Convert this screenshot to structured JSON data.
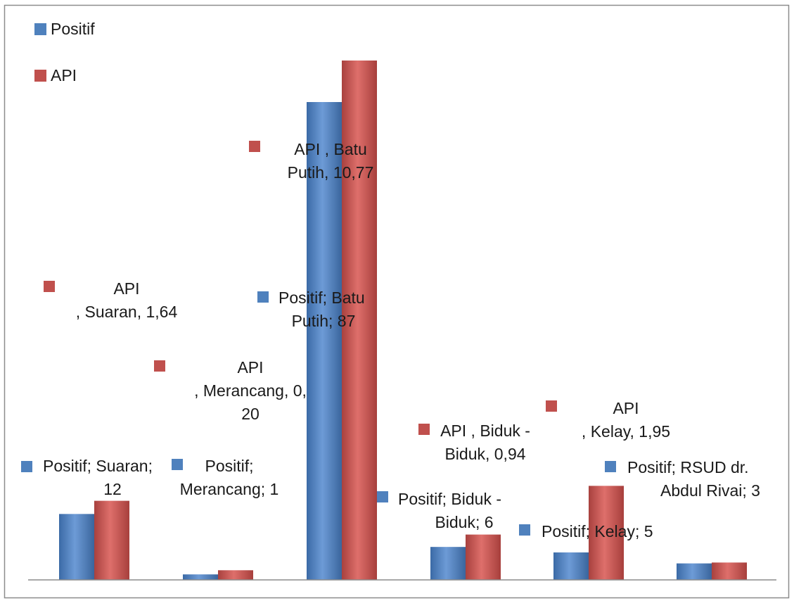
{
  "chart_data": {
    "type": "bar",
    "categories": [
      "Suaran",
      "Merancang",
      "Batu Putih",
      "Biduk - Biduk",
      "Kelay",
      "RSUD dr. Abdul Rivai"
    ],
    "series": [
      {
        "name": "Positif",
        "color": "#4f81bd",
        "values": [
          12,
          1,
          87,
          6,
          5,
          3
        ]
      },
      {
        "name": "API",
        "color": "#c0504d",
        "values": [
          1.64,
          0.2,
          10.77,
          0.94,
          1.95,
          0.36
        ]
      }
    ],
    "data_labels": {
      "Positif": [
        [
          "Positif; Suaran;",
          "12"
        ],
        [
          "Positif;",
          "Merancang; 1"
        ],
        [
          "Positif; Batu",
          "Putih; 87"
        ],
        [
          "Positif; Biduk -",
          "Biduk; 6"
        ],
        [
          "Positif; Kelay; 5"
        ],
        [
          "Positif; RSUD dr.",
          "Abdul Rivai; 3"
        ]
      ],
      "API": [
        [
          "API",
          ", Suaran, 1,64"
        ],
        [
          "API",
          ", Merancang,  0,",
          "20"
        ],
        [
          "API , Batu",
          "Putih,  10,77"
        ],
        [
          "API , Biduk -",
          "Biduk, 0,94"
        ],
        [
          "API",
          ", Kelay,  1,95"
        ]
      ]
    },
    "legend": {
      "position": "top-left",
      "entries": [
        "Positif",
        "API"
      ]
    },
    "grid": false
  }
}
